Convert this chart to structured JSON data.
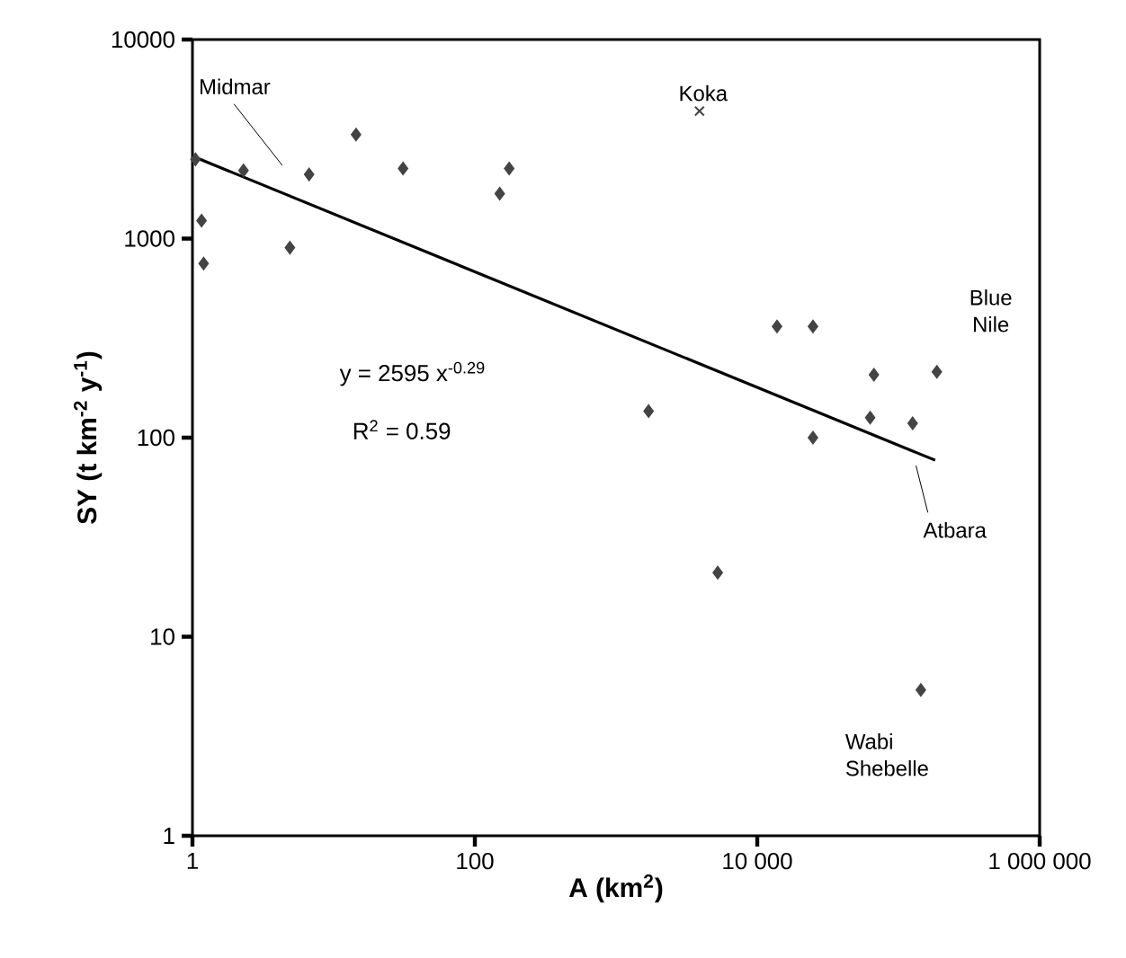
{
  "chart_data": {
    "type": "scatter",
    "xlabel": "A (km$^{2}$)",
    "ylabel": "SY (t km$^{-2}$ y$^{-1}$)",
    "log": "xy",
    "xlim": [
      1,
      1000000
    ],
    "ylim": [
      1,
      10000
    ],
    "xticks": [
      1,
      100,
      {
        "value": 10000,
        "label": "10 000"
      },
      {
        "value": 1000000,
        "label": "1 000 000"
      }
    ],
    "yticks": [
      1,
      10,
      100,
      1000,
      10000
    ],
    "series": [
      {
        "marker": "diamond",
        "color": "#444444",
        "x": [
          1.05,
          1.16,
          1.2,
          2.3,
          4.9,
          6.7,
          14.4,
          31,
          150,
          175,
          1700,
          5250,
          13800,
          24800,
          24800,
          63000,
          67000,
          126000,
          144000,
          187000
        ],
        "values": [
          2500,
          1230,
          750,
          2200,
          900,
          2100,
          3330,
          2250,
          1680,
          2250,
          136,
          21,
          362,
          362,
          100,
          126,
          207,
          118,
          5.4,
          214
        ]
      },
      {
        "marker": "cross",
        "color": "#444444",
        "x": [
          3900
        ],
        "values": [
          4370
        ]
      },
      {
        "type": "line",
        "marker": "none",
        "color": "#000000",
        "x": [
          1,
          182000
        ],
        "values": [
          2595,
          77
        ]
      }
    ],
    "annotations": [
      "Midmar",
      {
        "text": "Koka",
        "x": 3900,
        "y": 4370
      },
      {
        "text": "Blue Nile",
        "x": 187000,
        "y": 214
      },
      "Atbara",
      {
        "text": "Wabi Shebelle",
        "x": 144000,
        "y": 5.4
      },
      "y = 2595 x$^{-0.29}$",
      "R$^{2}$ = 0.59"
    ]
  }
}
